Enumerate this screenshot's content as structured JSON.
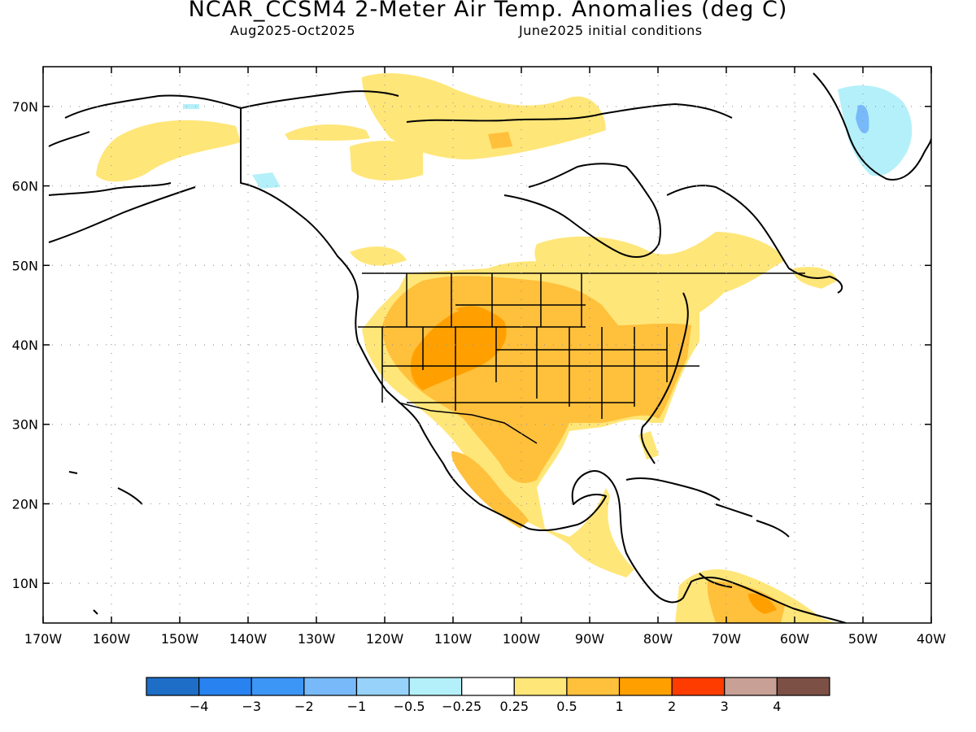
{
  "header": {
    "title": "NCAR_CCSM4 2-Meter Air Temp. Anomalies (deg C)",
    "period": "Aug2025-Oct2025",
    "init": "June2025 initial conditions"
  },
  "map": {
    "lon_range": [
      -170,
      -40
    ],
    "lat_range": [
      5,
      75
    ],
    "grid": true,
    "lat_ticks": [
      {
        "value": 70,
        "label": "70N"
      },
      {
        "value": 60,
        "label": "60N"
      },
      {
        "value": 50,
        "label": "50N"
      },
      {
        "value": 40,
        "label": "40N"
      },
      {
        "value": 30,
        "label": "30N"
      },
      {
        "value": 20,
        "label": "20N"
      },
      {
        "value": 10,
        "label": "10N"
      }
    ],
    "lon_ticks": [
      {
        "value": -170,
        "label": "170W"
      },
      {
        "value": -160,
        "label": "160W"
      },
      {
        "value": -150,
        "label": "150W"
      },
      {
        "value": -140,
        "label": "140W"
      },
      {
        "value": -130,
        "label": "130W"
      },
      {
        "value": -120,
        "label": "120W"
      },
      {
        "value": -110,
        "label": "110W"
      },
      {
        "value": -100,
        "label": "100W"
      },
      {
        "value": -90,
        "label": "90W"
      },
      {
        "value": -80,
        "label": "80W"
      },
      {
        "value": -70,
        "label": "70W"
      },
      {
        "value": -60,
        "label": "60W"
      },
      {
        "value": -50,
        "label": "50W"
      },
      {
        "value": -40,
        "label": "40W"
      }
    ]
  },
  "colorbar": {
    "colors": [
      "#1e6ec8",
      "#2882f0",
      "#3c96f5",
      "#78b9fa",
      "#96d2fa",
      "#b4f0fa",
      "#ffffff",
      "#ffe678",
      "#ffc03c",
      "#ffa000",
      "#ff3c00",
      "#c8a096",
      "#7d5046"
    ],
    "labels": [
      "-4",
      "-3",
      "-2",
      "-1",
      "-0.5",
      "-0.25",
      "0.25",
      "0.5",
      "1",
      "2",
      "3",
      "4"
    ]
  }
}
